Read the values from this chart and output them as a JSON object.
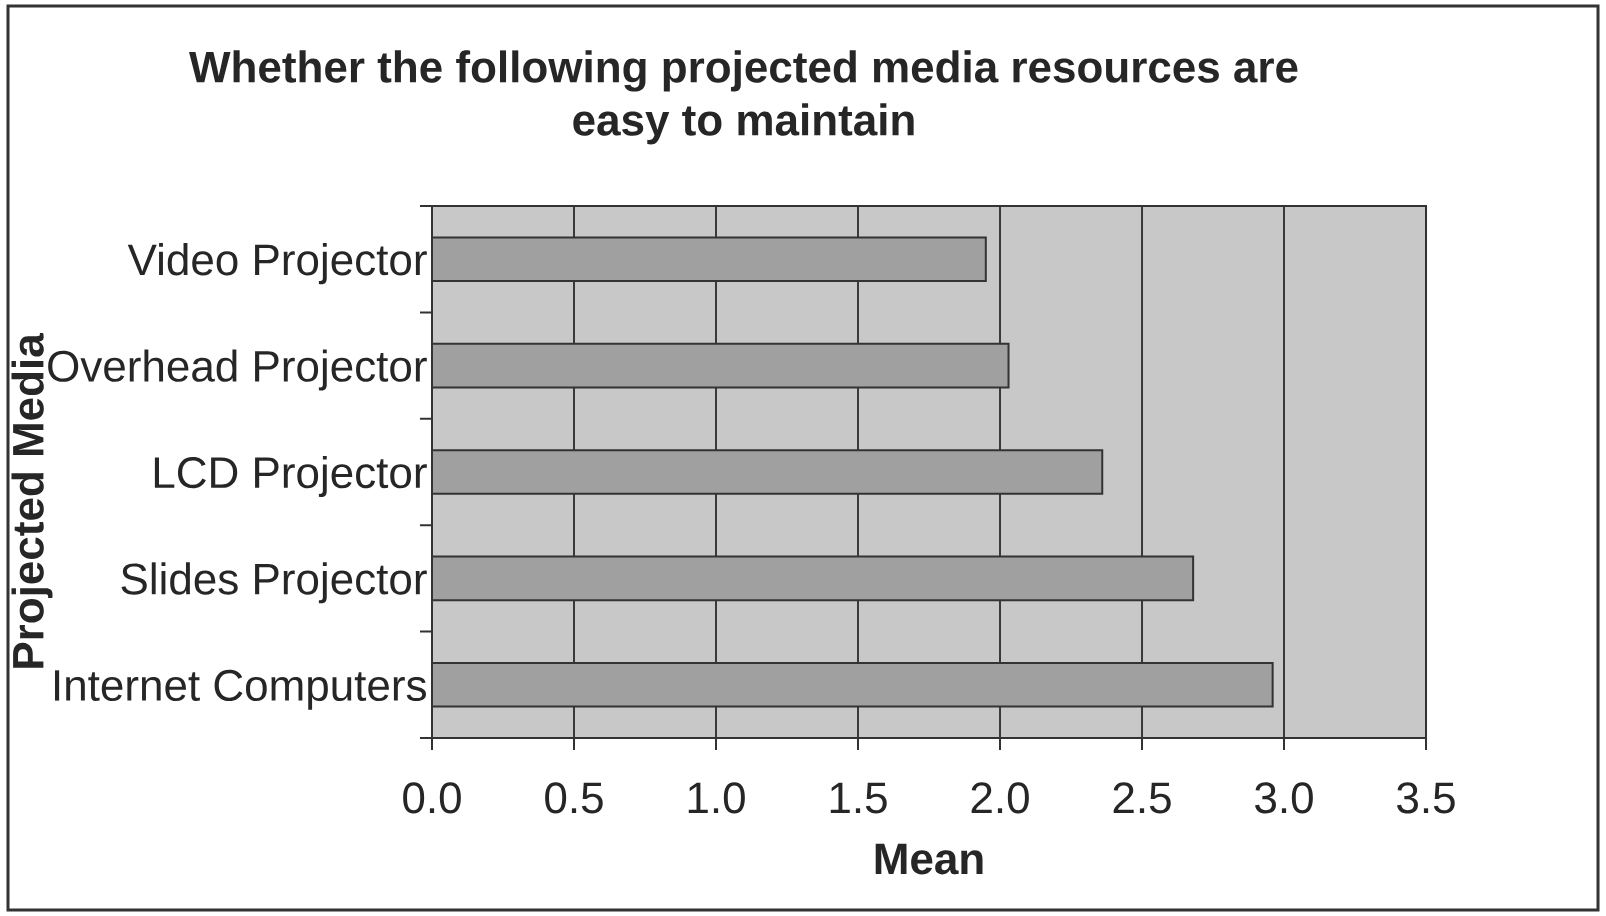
{
  "chart_data": {
    "type": "bar",
    "orientation": "horizontal",
    "title": "Whether the following projected media resources are easy to maintain",
    "xlabel": "Mean",
    "ylabel": "Projected Media",
    "categories": [
      "Video Projector",
      "Overhead Projector",
      "LCD Projector",
      "Slides Projector",
      "Internet Computers"
    ],
    "values": [
      1.95,
      2.03,
      2.36,
      2.68,
      2.96
    ],
    "color": "#a0a0a0",
    "xlim": [
      0,
      3.5
    ],
    "xticks": [
      {
        "value": 0,
        "label": "0.0"
      },
      0.5,
      {
        "value": 1,
        "label": "1.0"
      },
      1.5,
      {
        "value": 2,
        "label": "2.0"
      },
      2.5,
      {
        "value": 3,
        "label": "3.0"
      },
      3.5
    ],
    "grid": "x"
  }
}
